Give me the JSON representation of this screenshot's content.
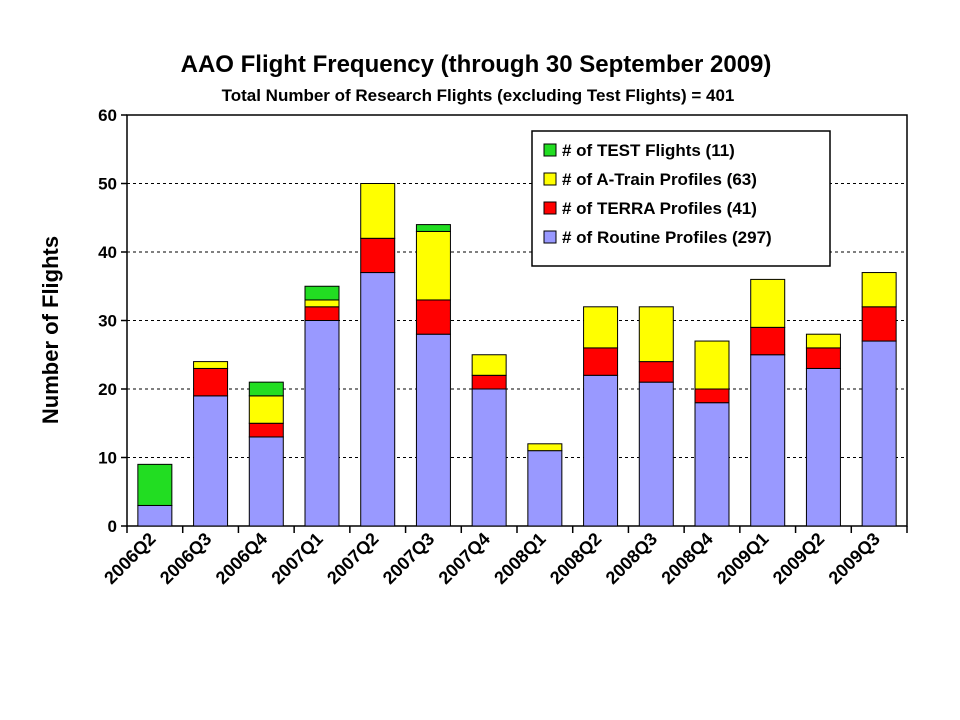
{
  "chart_data": {
    "type": "bar",
    "stacked": true,
    "title": "AAO Flight Frequency (through 30 September 2009)",
    "subtitle": "Total Number of Research Flights (excluding Test Flights) = 401",
    "xlabel": "",
    "ylabel": "Number of Flights",
    "ylim": [
      0,
      60
    ],
    "yticks": [
      "0",
      "10",
      "20",
      "30",
      "40",
      "50",
      "60"
    ],
    "grid": "horizontal-dashed",
    "legend_position": "top-right",
    "categories": [
      "2006Q2",
      "2006Q3",
      "2006Q4",
      "2007Q1",
      "2007Q2",
      "2007Q3",
      "2007Q4",
      "2008Q1",
      "2008Q2",
      "2008Q3",
      "2008Q4",
      "2009Q1",
      "2009Q2",
      "2009Q3"
    ],
    "series": [
      {
        "name": "# of Routine Profiles (297)",
        "color": "#9999ff",
        "values": [
          3,
          19,
          13,
          30,
          37,
          28,
          20,
          11,
          22,
          21,
          18,
          25,
          23,
          27
        ]
      },
      {
        "name": "# of TERRA Profiles (41)",
        "color": "#ff0000",
        "values": [
          0,
          4,
          2,
          2,
          5,
          5,
          2,
          0,
          4,
          3,
          2,
          4,
          3,
          5
        ]
      },
      {
        "name": "# of A-Train Profiles (63)",
        "color": "#ffff00",
        "values": [
          0,
          1,
          4,
          1,
          8,
          10,
          3,
          1,
          6,
          8,
          7,
          7,
          2,
          5
        ]
      },
      {
        "name": "# of TEST Flights (11)",
        "color": "#22dd22",
        "values": [
          6,
          0,
          2,
          2,
          0,
          1,
          0,
          0,
          0,
          0,
          0,
          0,
          0,
          0
        ]
      }
    ]
  }
}
